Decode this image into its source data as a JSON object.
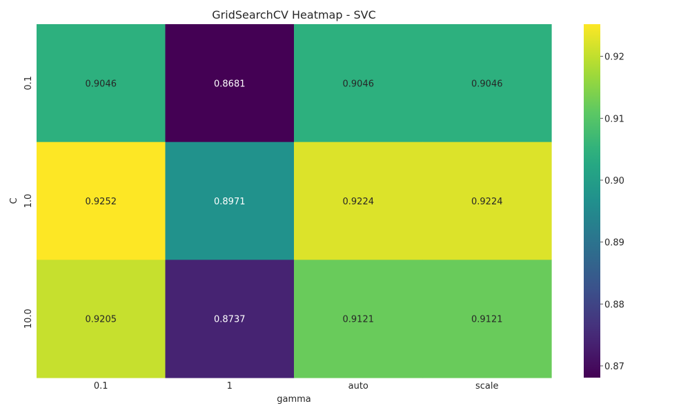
{
  "chart_data": {
    "type": "heatmap",
    "title": "GridSearchCV Heatmap - SVC",
    "xlabel": "gamma",
    "ylabel": "C",
    "x_categories": [
      "0.1",
      "1",
      "auto",
      "scale"
    ],
    "y_categories": [
      "0.1",
      "1.0",
      "10.0"
    ],
    "values": [
      [
        0.9046,
        0.8681,
        0.9046,
        0.9046
      ],
      [
        0.9252,
        0.8971,
        0.9224,
        0.9224
      ],
      [
        0.9205,
        0.8737,
        0.9121,
        0.9121
      ]
    ],
    "annotations": [
      [
        "0.9046",
        "0.8681",
        "0.9046",
        "0.9046"
      ],
      [
        "0.9252",
        "0.8971",
        "0.9224",
        "0.9224"
      ],
      [
        "0.9205",
        "0.8737",
        "0.9121",
        "0.9121"
      ]
    ],
    "colormap": "viridis",
    "vmin": 0.8681,
    "vmax": 0.9252,
    "colorbar": {
      "ticks": [
        0.87,
        0.88,
        0.89,
        0.9,
        0.91,
        0.92
      ],
      "tick_labels": [
        "0.87",
        "0.88",
        "0.89",
        "0.90",
        "0.91",
        "0.92"
      ]
    },
    "grid": false
  }
}
